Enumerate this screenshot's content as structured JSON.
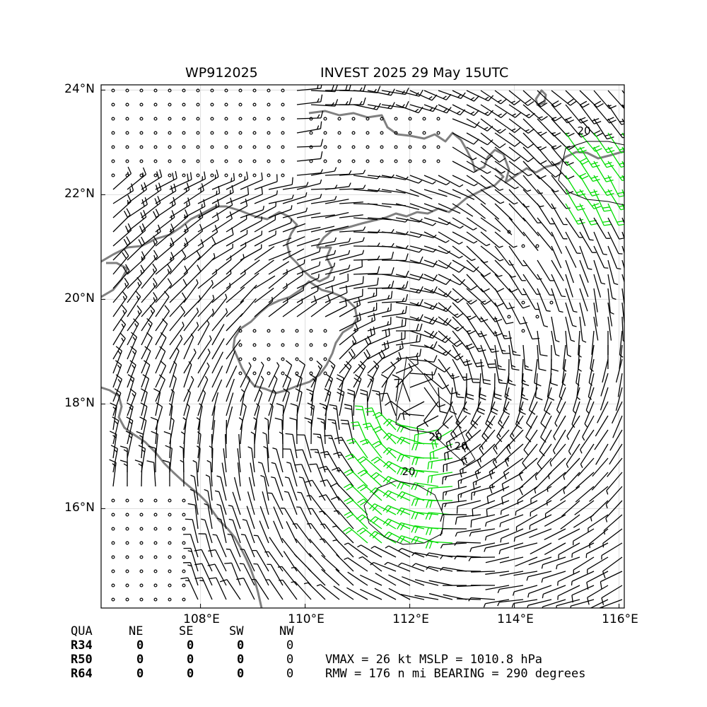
{
  "title": {
    "storm_id": "WP912025",
    "description": "INVEST 2025 29 May 15UTC"
  },
  "axes": {
    "lat_labels": [
      "24°N",
      "22°N",
      "20°N",
      "18°N",
      "16°N"
    ],
    "lon_labels": [
      "108°E",
      "110°E",
      "112°E",
      "114°E",
      "116°E"
    ],
    "lat_range": [
      14.1,
      24.1
    ],
    "lon_range": [
      106.1,
      116.1
    ]
  },
  "contours": {
    "label": "20",
    "line_color": "#000000"
  },
  "colors": {
    "coastline": "#808080",
    "barb": "#000000",
    "strong_barb": "#00dd00",
    "calm_circle": "#000000"
  },
  "quadrant_table": {
    "headers": [
      "QUA",
      "NE",
      "SE",
      "SW",
      "NW"
    ],
    "rows": [
      {
        "label": "R34",
        "values": [
          "0",
          "0",
          "0",
          "0"
        ]
      },
      {
        "label": "R50",
        "values": [
          "0",
          "0",
          "0",
          "0"
        ]
      },
      {
        "label": "R64",
        "values": [
          "0",
          "0",
          "0",
          "0"
        ]
      }
    ]
  },
  "stats": {
    "line1": "VMAX =  26 kt MSLP = 1010.8 hPa",
    "line2": "RMW = 176 n mi BEARING = 290 degrees"
  }
}
